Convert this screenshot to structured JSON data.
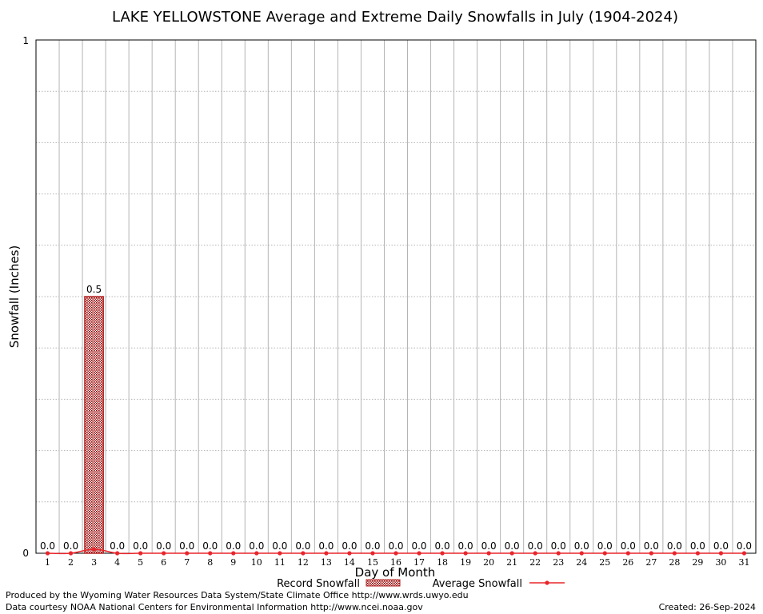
{
  "chart_data": {
    "type": "bar",
    "title": "LAKE YELLOWSTONE Average and Extreme Daily Snowfalls in July (1904-2024)",
    "xlabel": "Day of Month",
    "ylabel": "Snowfall (Inches)",
    "ylim": [
      0,
      1
    ],
    "y_tick_labels": [
      "0",
      "1"
    ],
    "categories": [
      "1",
      "2",
      "3",
      "4",
      "5",
      "6",
      "7",
      "8",
      "9",
      "10",
      "11",
      "12",
      "13",
      "14",
      "15",
      "16",
      "17",
      "18",
      "19",
      "20",
      "21",
      "22",
      "23",
      "24",
      "25",
      "26",
      "27",
      "28",
      "29",
      "30",
      "31"
    ],
    "data_labels": [
      "0.0",
      "0.0",
      "0.5",
      "0.0",
      "0.0",
      "0.0",
      "0.0",
      "0.0",
      "0.0",
      "0.0",
      "0.0",
      "0.0",
      "0.0",
      "0.0",
      "0.0",
      "0.0",
      "0.0",
      "0.0",
      "0.0",
      "0.0",
      "0.0",
      "0.0",
      "0.0",
      "0.0",
      "0.0",
      "0.0",
      "0.0",
      "0.0",
      "0.0",
      "0.0",
      "0.0"
    ],
    "series": [
      {
        "name": "Record Snowfall",
        "type": "bar",
        "color": "#b22222",
        "values": [
          0,
          0,
          0.5,
          0,
          0,
          0,
          0,
          0,
          0,
          0,
          0,
          0,
          0,
          0,
          0,
          0,
          0,
          0,
          0,
          0,
          0,
          0,
          0,
          0,
          0,
          0,
          0,
          0,
          0,
          0,
          0
        ]
      },
      {
        "name": "Average Snowfall",
        "type": "line",
        "color": "#e8262b",
        "values": [
          0,
          0,
          0.008,
          0,
          0,
          0,
          0,
          0,
          0,
          0,
          0,
          0,
          0,
          0,
          0,
          0,
          0,
          0,
          0,
          0,
          0,
          0,
          0,
          0,
          0,
          0,
          0,
          0,
          0,
          0,
          0
        ]
      }
    ],
    "grid": true,
    "legend_position": "bottom-center"
  },
  "footer": {
    "line1": "Produced by the Wyoming Water Resources Data System/State Climate Office http://www.wrds.uwyo.edu",
    "line2": "Data courtesy NOAA National Centers for Environmental Information http://www.ncei.noaa.gov",
    "created": "Created:  26-Sep-2024"
  }
}
